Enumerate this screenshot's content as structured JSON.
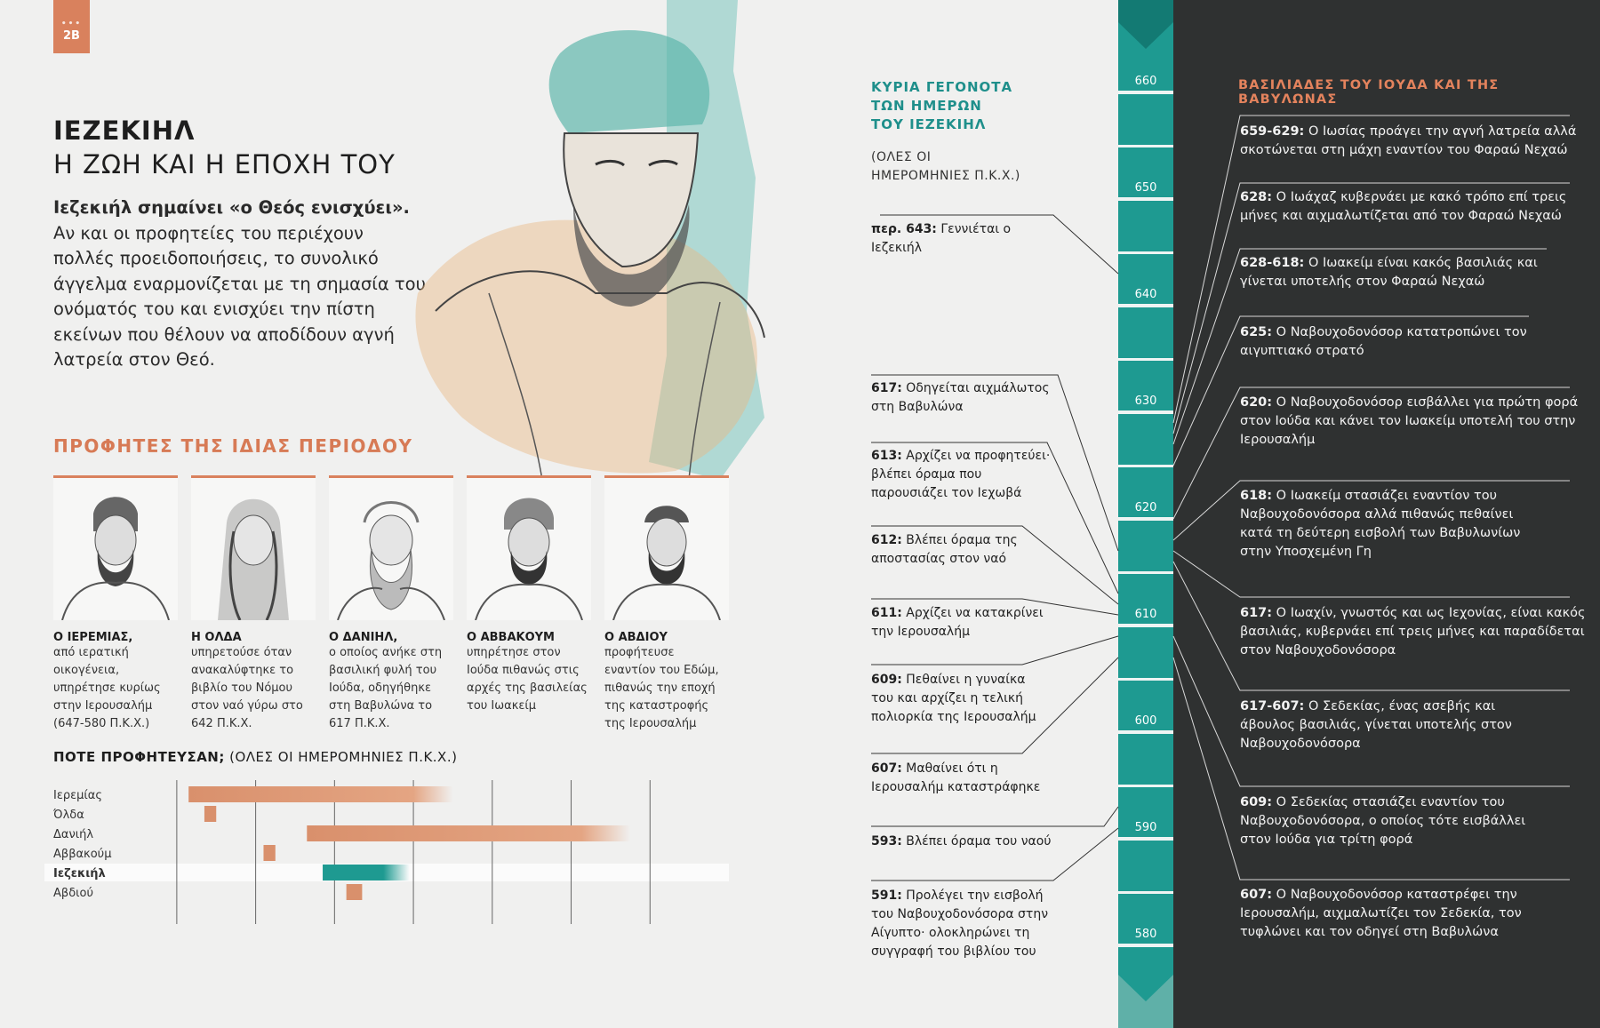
{
  "page_tab": {
    "dots": "•••",
    "number": "2B"
  },
  "header": {
    "title": "ΙΕΖΕΚΙΗΛ",
    "subtitle": "Η ΖΩΗ ΚΑΙ Η ΕΠΟΧΗ ΤΟΥ",
    "intro_bold": "Ιεζεκιήλ σημαίνει «ο Θεός ενισχύει».",
    "intro_text": "Αν και οι προφητείες του περιέχουν πολλές προειδοποιήσεις, το συνολικό άγγελμα εναρμονίζεται με τη σημασία του ονόματός του και ενισχύει την πίστη εκείνων που θέλουν να αποδίδουν αγνή λατρεία στον Θεό."
  },
  "prophets": {
    "heading": "ΠΡΟΦΗΤΕΣ ΤΗΣ ΙΔΙΑΣ ΠΕΡΙΟΔΟΥ",
    "items": [
      {
        "name": "Ο ΙΕΡΕΜΙΑΣ,",
        "desc": "από ιερατική οικογένεια, υπηρέτησε κυρίως στην Ιερουσαλήμ (647-580 Π.Κ.Χ.)"
      },
      {
        "name": "Η ΟΛΔΑ",
        "desc": "υπηρετούσε όταν ανακαλύφτηκε το βιβλίο του Νόμου στον ναό γύρω στο 642 Π.Κ.Χ."
      },
      {
        "name": "Ο ΔΑΝΙΗΛ,",
        "desc": "ο οποίος ανήκε στη βασιλική φυλή του Ιούδα, οδηγήθηκε στη Βαβυλώνα το 617 Π.Κ.Χ."
      },
      {
        "name": "Ο ΑΒΒΑΚΟΥΜ",
        "desc": "υπηρέτησε στον Ιούδα πιθανώς στις αρχές της βασιλείας του Ιωακείμ"
      },
      {
        "name": "Ο ΑΒΔΙΟΥ",
        "desc": "προφήτευσε εναντίον του Εδώμ, πιθανώς την εποχή της καταστροφής της Ιερουσαλήμ"
      }
    ]
  },
  "when": {
    "title_bold": "ΠΟΤΕ ΠΡΟΦΗΤΕΥΣΑΝ;",
    "title_rest": " (ΟΛΕΣ ΟΙ ΗΜΕΡΟΜΗΝΙΕΣ Π.Κ.Χ.)"
  },
  "chart_data": {
    "type": "bar",
    "orientation": "horizontal",
    "x_axis_ticks": [
      650,
      630,
      610,
      590,
      570,
      550,
      530
    ],
    "xlim": [
      652,
      510
    ],
    "series": [
      {
        "name": "Ιερεμίας",
        "start": 647,
        "end": 580,
        "color": "#d9906c",
        "highlight": false
      },
      {
        "name": "Όλδα",
        "start": 643,
        "end": 640,
        "color": "#d9906c",
        "highlight": false
      },
      {
        "name": "Δανιήλ",
        "start": 617,
        "end": 535,
        "color": "#d9906c",
        "highlight": false
      },
      {
        "name": "Αββακούμ",
        "start": 628,
        "end": 625,
        "color": "#d9906c",
        "highlight": false
      },
      {
        "name": "Ιεζεκιήλ",
        "start": 613,
        "end": 591,
        "color": "#1e9a91",
        "highlight": true
      },
      {
        "name": "Αβδιού",
        "start": 607,
        "end": 603,
        "color": "#d9906c",
        "highlight": false
      }
    ]
  },
  "events": {
    "heading": [
      "ΚΥΡΙΑ ΓΕΓΟΝΟΤΑ",
      "ΤΩΝ ΗΜΕΡΩΝ",
      "ΤΟΥ ΙΕΖΕΚΙΗΛ"
    ],
    "note": [
      "(ΟΛΕΣ ΟΙ",
      "ΗΜΕΡΟΜΗΝΙΕΣ Π.Κ.Χ.)"
    ],
    "items": [
      {
        "date": "περ. 643:",
        "text": " Γεννιέται ο Ιεζεκιήλ",
        "year": 643
      },
      {
        "date": "617:",
        "text": " Οδηγείται αιχμάλωτος στη Βαβυλώνα",
        "year": 617
      },
      {
        "date": "613:",
        "text": " Αρχίζει να προφητεύει· βλέπει όραμα που παρουσιάζει τον Ιεχωβά",
        "year": 613
      },
      {
        "date": "612:",
        "text": " Βλέπει όραμα της αποστασίας στον ναό",
        "year": 612
      },
      {
        "date": "611:",
        "text": " Αρχίζει να κατακρίνει την Ιερουσαλήμ",
        "year": 611
      },
      {
        "date": "609:",
        "text": " Πεθαίνει η γυναίκα του και αρχίζει η τελική πολιορκία της Ιερουσαλήμ",
        "year": 609
      },
      {
        "date": "607:",
        "text": " Μαθαίνει ότι η Ιερουσαλήμ καταστράφηκε",
        "year": 607
      },
      {
        "date": "593:",
        "text": " Βλέπει όραμα του ναού",
        "year": 593
      },
      {
        "date": "591:",
        "text": " Προλέγει την εισβολή του Ναβουχοδονόσορα στην Αίγυπτο· ολοκληρώνει τη συγγραφή του βιβλίου του",
        "year": 591
      }
    ]
  },
  "timeline": {
    "years": [
      "660",
      "650",
      "640",
      "630",
      "620",
      "610",
      "600",
      "590",
      "580"
    ]
  },
  "kings": {
    "heading": "ΒΑΣΙΛΙΑΔΕΣ ΤΟΥ ΙΟΥΔΑ ΚΑΙ ΤΗΣ ΒΑΒΥΛΩΝΑΣ",
    "items": [
      {
        "date": "659-629:",
        "text": " Ο Ιωσίας προάγει την αγνή λατρεία αλλά σκοτώνεται στη μάχη εναντίον του Φαραώ Νεχαώ",
        "year": 629
      },
      {
        "date": "628:",
        "text": " Ο Ιωάχαζ κυβερνάει με κακό τρόπο επί τρεις μήνες και αιχμαλωτίζεται από τον Φαραώ Νεχαώ",
        "year": 628
      },
      {
        "date": "628-618:",
        "text": " Ο Ιωακείμ είναι κακός βασιλιάς και γίνεται υποτελής στον Φαραώ Νεχαώ",
        "year": 627
      },
      {
        "date": "625:",
        "text": " Ο Ναβουχοδονόσορ κατατροπώνει τον αιγυπτιακό στρατό",
        "year": 625
      },
      {
        "date": "620:",
        "text": " Ο Ναβουχοδονόσορ εισβάλλει για πρώτη φορά στον Ιούδα και κάνει τον Ιωακείμ υποτελή του στην Ιερουσαλήμ",
        "year": 620
      },
      {
        "date": "618:",
        "text": " Ο Ιωακείμ στασιάζει εναντίον του Ναβουχοδονόσορα αλλά πιθανώς πεθαίνει κατά τη δεύτερη εισβολή των Βαβυλωνίων στην Υποσχεμένη Γη",
        "year": 618
      },
      {
        "date": "617:",
        "text": " Ο Ιωαχίν, γνωστός και ως Ιεχονίας, είναι κακός βασιλιάς, κυβερνάει επί τρεις μήνες και παραδίδεται στον Ναβουχοδονόσορα",
        "year": 617
      },
      {
        "date": "617-607:",
        "text": " Ο Σεδεκίας, ένας ασεβής και άβουλος βασιλιάς, γίνεται υποτελής στον Ναβουχοδονόσορα",
        "year": 616
      },
      {
        "date": "609:",
        "text": " Ο Σεδεκίας στασιάζει εναντίον του Ναβουχοδονόσορα, ο οποίος τότε εισβάλλει στον Ιούδα για τρίτη φορά",
        "year": 609
      },
      {
        "date": "607:",
        "text": " Ο Ναβουχοδονόσορ καταστρέφει την Ιερουσαλήμ, αιχμαλωτίζει τον Σεδεκία, τον τυφλώνει και τον οδηγεί στη Βαβυλώνα",
        "year": 607
      }
    ]
  },
  "colors": {
    "accent": "#d9815d",
    "teal": "#1e9a91",
    "dark_panel": "#2f3131"
  }
}
